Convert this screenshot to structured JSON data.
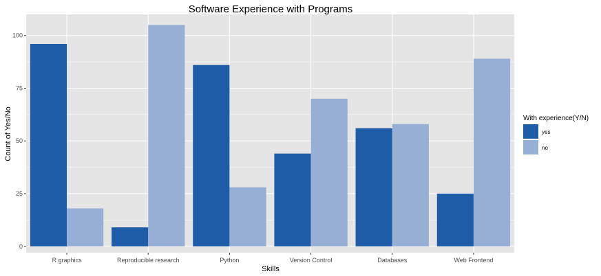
{
  "chart_data": {
    "type": "bar",
    "title": "Software Experience with Programs",
    "xlabel": "Skills",
    "ylabel": "Count of Yes/No",
    "categories": [
      "R graphics",
      "Reproducible research",
      "Python",
      "Version Control",
      "Databases",
      "Web Frontend"
    ],
    "series": [
      {
        "name": "yes",
        "values": [
          96,
          9,
          86,
          44,
          56,
          25
        ],
        "color": "#1f5ca8"
      },
      {
        "name": "no",
        "values": [
          18,
          105,
          28,
          70,
          58,
          89
        ],
        "color": "#97afd5"
      }
    ],
    "ylim": [
      -3,
      110
    ],
    "yticks": [
      0,
      25,
      50,
      75,
      100
    ],
    "grid": true,
    "legend": {
      "title": "With experience(Y/N)",
      "position": "right"
    },
    "colors": {
      "panel": "#e5e5e5",
      "grid": "#ffffff"
    }
  }
}
